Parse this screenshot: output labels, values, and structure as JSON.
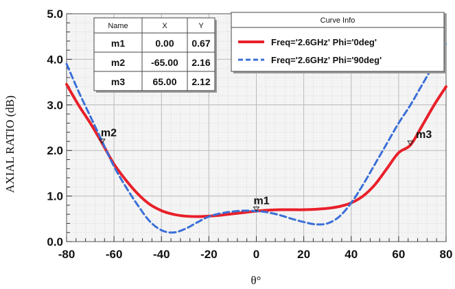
{
  "chart_data": {
    "type": "line",
    "xlabel": "θ°",
    "ylabel": "AXIAL RATIO (dB)",
    "xlim": [
      -80,
      80
    ],
    "ylim": [
      0,
      5
    ],
    "x_ticks": [
      -80,
      -60,
      -40,
      -20,
      0,
      20,
      40,
      60,
      80
    ],
    "y_ticks": [
      "0.0",
      "1.0",
      "2.0",
      "3.0",
      "4.0",
      "5.0"
    ],
    "grid": true,
    "legend_title": "Curve Info",
    "legend_placement": "top-right",
    "series": [
      {
        "name": "Freq='2.6GHz' Phi='0deg'",
        "color": "#e8202a",
        "style": "solid",
        "x": [
          -80,
          -75,
          -70,
          -65,
          -60,
          -55,
          -50,
          -45,
          -40,
          -35,
          -30,
          -25,
          -20,
          -15,
          -10,
          -5,
          0,
          5,
          10,
          15,
          20,
          25,
          30,
          35,
          40,
          45,
          50,
          55,
          60,
          65,
          70,
          75,
          80
        ],
        "y": [
          3.45,
          3.0,
          2.6,
          2.16,
          1.7,
          1.35,
          1.05,
          0.82,
          0.68,
          0.6,
          0.56,
          0.55,
          0.56,
          0.58,
          0.61,
          0.64,
          0.67,
          0.69,
          0.7,
          0.7,
          0.7,
          0.71,
          0.73,
          0.77,
          0.85,
          1.0,
          1.25,
          1.6,
          1.95,
          2.12,
          2.55,
          3.0,
          3.4
        ]
      },
      {
        "name": "Freq='2.6GHz' Phi='90deg'",
        "color": "#3a6fd8",
        "style": "dashed",
        "x": [
          -80,
          -75,
          -70,
          -65,
          -60,
          -55,
          -50,
          -45,
          -40,
          -35,
          -30,
          -25,
          -20,
          -15,
          -10,
          -5,
          0,
          5,
          10,
          15,
          20,
          25,
          30,
          35,
          40,
          45,
          50,
          55,
          60,
          65,
          70,
          75,
          80
        ],
        "y": [
          3.9,
          3.3,
          2.75,
          2.2,
          1.65,
          1.2,
          0.8,
          0.45,
          0.25,
          0.2,
          0.28,
          0.42,
          0.55,
          0.62,
          0.66,
          0.68,
          0.67,
          0.64,
          0.58,
          0.5,
          0.43,
          0.38,
          0.4,
          0.55,
          0.85,
          1.25,
          1.7,
          2.15,
          2.6,
          3.0,
          3.45,
          3.9,
          4.35
        ]
      }
    ],
    "markers": [
      {
        "name": "m1",
        "x": 0.0,
        "y": 0.67
      },
      {
        "name": "m2",
        "x": -65.0,
        "y": 2.16
      },
      {
        "name": "m3",
        "x": 65.0,
        "y": 2.12
      }
    ],
    "marker_table": {
      "headers": [
        "Name",
        "X",
        "Y"
      ],
      "rows": [
        [
          "m1",
          "0.00",
          "0.67"
        ],
        [
          "m2",
          "-65.00",
          "2.16"
        ],
        [
          "m3",
          "65.00",
          "2.12"
        ]
      ]
    }
  }
}
